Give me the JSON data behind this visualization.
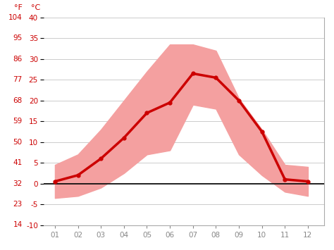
{
  "months": [
    1,
    2,
    3,
    4,
    5,
    6,
    7,
    8,
    9,
    10,
    11,
    12
  ],
  "month_labels": [
    "01",
    "02",
    "03",
    "04",
    "05",
    "06",
    "07",
    "08",
    "09",
    "10",
    "11",
    "12"
  ],
  "avg_temp_c": [
    0.5,
    2.0,
    6.0,
    11.0,
    17.0,
    19.5,
    26.5,
    25.5,
    20.0,
    12.5,
    1.0,
    0.5
  ],
  "max_temp_c": [
    4.5,
    7.0,
    13.0,
    20.0,
    27.0,
    33.5,
    33.5,
    32.0,
    20.5,
    13.0,
    4.5,
    4.0
  ],
  "min_temp_c": [
    -3.5,
    -3.0,
    -1.0,
    2.5,
    7.0,
    8.0,
    19.0,
    18.0,
    7.0,
    2.0,
    -2.0,
    -3.0
  ],
  "zero_line_y": 0,
  "ylim_c": [
    -10,
    40
  ],
  "yticks_c": [
    -10,
    -5,
    0,
    5,
    10,
    15,
    20,
    25,
    30,
    35,
    40
  ],
  "yticks_f": [
    14,
    23,
    32,
    41,
    50,
    59,
    68,
    77,
    86,
    95,
    104
  ],
  "band_color": "#f4a0a0",
  "line_color": "#cc0000",
  "zero_line_color": "#111111",
  "background_color": "#ffffff",
  "grid_color": "#cccccc",
  "label_color": "#cc0000",
  "tick_color": "#888888",
  "line_width": 2.5,
  "marker": "o",
  "marker_size": 3.5,
  "figsize": [
    4.74,
    3.55
  ],
  "dpi": 100
}
